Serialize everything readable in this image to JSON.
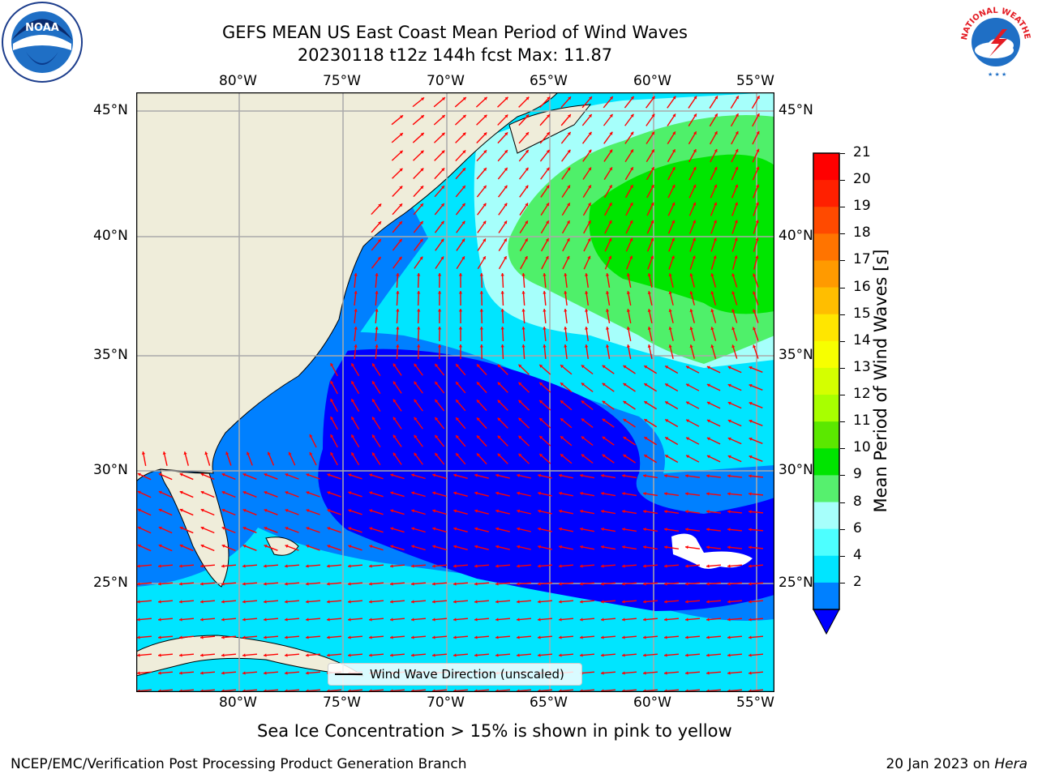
{
  "header": {
    "title_line1": "GEFS MEAN US East Coast Mean Period of Wind Waves",
    "title_line2": "20230118 t12z 144h fcst   Max: 11.87"
  },
  "logos": {
    "left": {
      "text": "NOAA",
      "icon": "noaa-logo"
    },
    "right": {
      "text": "NATIONAL WEATHER SERVICE",
      "icon": "nws-logo"
    }
  },
  "map": {
    "lon_ticks": [
      "80°W",
      "75°W",
      "70°W",
      "65°W",
      "60°W",
      "55°W"
    ],
    "lat_ticks": [
      "45°N",
      "40°N",
      "35°N",
      "30°N",
      "25°N"
    ],
    "legend_label": "Wind Wave Direction (unscaled)",
    "colors": {
      "land": "#efedda",
      "blue_2": "#0000ff",
      "blue_4": "#0080ff",
      "cyan_6": "#00e5ff",
      "cyan_8": "#4dffff",
      "lightcyan_9": "#a6fffb",
      "green_10": "#4ff06a",
      "green_11": "#00e600",
      "arrow": "#ff0000",
      "grid": "#aaaaaa"
    }
  },
  "colorbar": {
    "label": "Mean Period of Wind Waves [s]",
    "ticks": [
      "21",
      "20",
      "19",
      "18",
      "17",
      "16",
      "15",
      "14",
      "13",
      "12",
      "11",
      "10",
      "9",
      "8",
      "6",
      "4",
      "2"
    ],
    "colors": [
      "#ff0000",
      "#ff2000",
      "#ff4a00",
      "#ff7400",
      "#ff9a00",
      "#ffbe00",
      "#ffe600",
      "#f7ff00",
      "#d4ff00",
      "#a8ff00",
      "#5be800",
      "#00e400",
      "#56f06e",
      "#a6fffb",
      "#4dffff",
      "#00e5ff",
      "#0080ff"
    ],
    "extend_color": "#0000ff"
  },
  "note": "Sea Ice Concentration > 15% is shown in pink to yellow",
  "footer": {
    "left": "NCEP/EMC/Verification Post Processing Product Generation Branch",
    "right_date": "20 Jan 2023 on ",
    "right_machine": "Hera"
  }
}
